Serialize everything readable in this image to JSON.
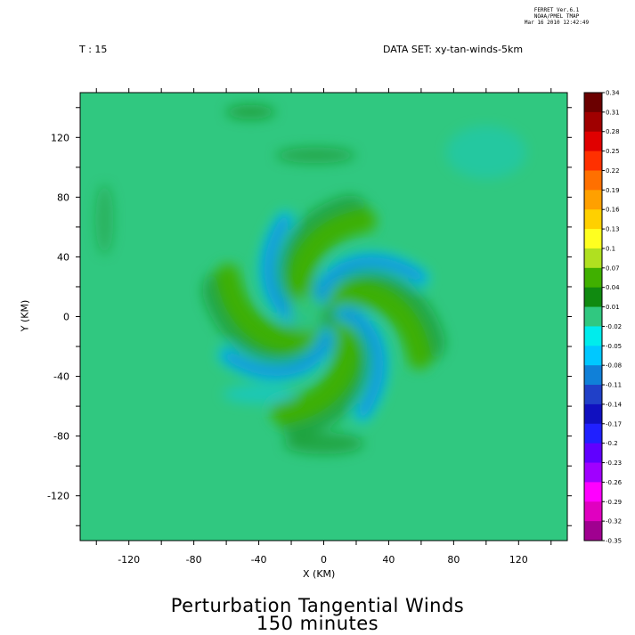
{
  "header": {
    "program": "FERRET  Ver.6.1",
    "org": "NOAA/PMEL TMAP",
    "timestamp": "Mar 16 2010 12:42:49"
  },
  "info": {
    "time_label": "T : 15",
    "dataset_label": "DATA SET: xy-tan-winds-5km"
  },
  "chart_data": {
    "type": "heatmap",
    "title": "Perturbation Tangential Winds",
    "subtitle": "150 minutes",
    "xlabel": "X (KM)",
    "ylabel": "Y (KM)",
    "xlim": [
      -150,
      150
    ],
    "ylim": [
      -150,
      150
    ],
    "x_ticks": [
      -120,
      -80,
      -40,
      0,
      40,
      80,
      120
    ],
    "y_ticks": [
      120,
      80,
      40,
      0,
      -40,
      -80,
      -120
    ],
    "x_tick_labels": [
      "-120",
      "-80",
      "-40",
      "0",
      "40",
      "80",
      "120"
    ],
    "y_tick_labels": [
      "120",
      "80",
      "40",
      "0",
      "-40",
      "-80",
      "-120"
    ],
    "colorbar": {
      "levels": [
        0.34,
        0.31,
        0.28,
        0.25,
        0.22,
        0.19,
        0.16,
        0.13,
        0.1,
        0.07,
        0.04,
        0.01,
        -0.02,
        -0.05,
        -0.08,
        -0.11,
        -0.14,
        -0.17,
        -0.2,
        -0.23,
        -0.26,
        -0.29,
        -0.32,
        -0.35
      ],
      "labels": [
        "0.34",
        "0.31",
        "0.28",
        "0.25",
        "0.22",
        "0.19",
        "0.16",
        "0.13",
        "0.1",
        "0.07",
        "0.04",
        "0.01",
        "-0.02",
        "-0.05",
        "-0.08",
        "-0.11",
        "-0.14",
        "-0.17",
        "-0.2",
        "-0.23",
        "-0.26",
        "-0.29",
        "-0.32",
        "-0.35"
      ],
      "colors": [
        "#6b0000",
        "#a00000",
        "#e00000",
        "#ff3000",
        "#ff7000",
        "#ffa000",
        "#ffd000",
        "#ffff20",
        "#b0e020",
        "#40b000",
        "#108a10",
        "#30c880",
        "#00ecec",
        "#00c8ff",
        "#1080d8",
        "#2040c8",
        "#1010c0",
        "#2020ff",
        "#6000ff",
        "#a000ff",
        "#ff00ff",
        "#e000c0",
        "#a00090",
        "#600050"
      ]
    },
    "features": {
      "pattern": "four spiral arms of alternating positive and negative perturbation around the domain centre",
      "background_value": -0.02
    }
  }
}
